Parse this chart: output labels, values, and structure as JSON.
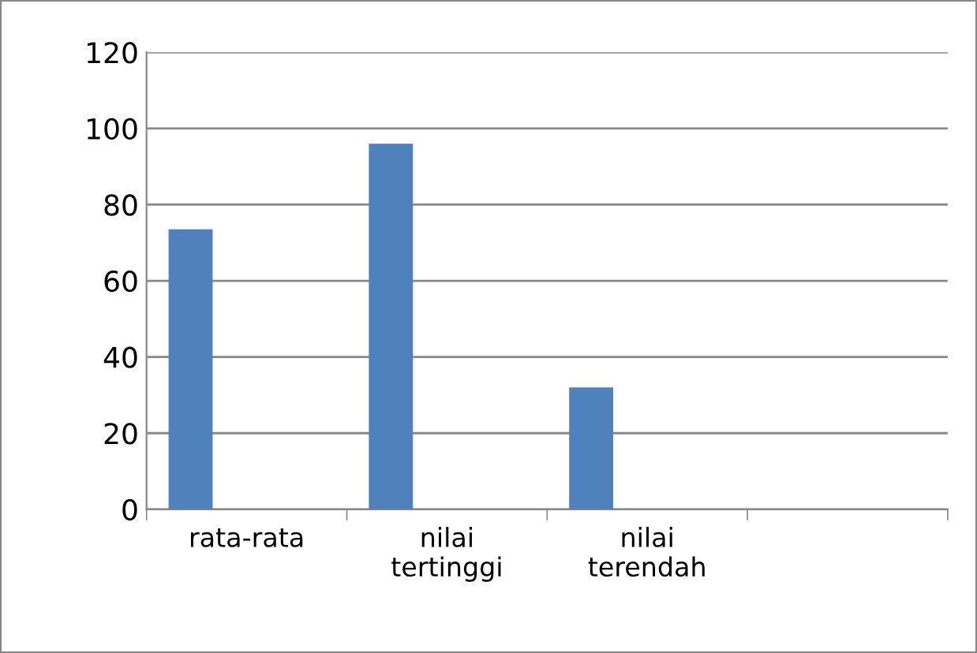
{
  "chart_data": {
    "type": "bar",
    "categories": [
      "rata-rata",
      "nilai\ntertinggi",
      "nilai\nterendah",
      null
    ],
    "values": [
      73.5,
      96,
      32,
      null
    ],
    "color": "#4f81bd",
    "ylim": [
      0,
      120
    ],
    "yticks": [
      0,
      20,
      40,
      60,
      80,
      100,
      120
    ],
    "grid": "y",
    "legend": false
  }
}
